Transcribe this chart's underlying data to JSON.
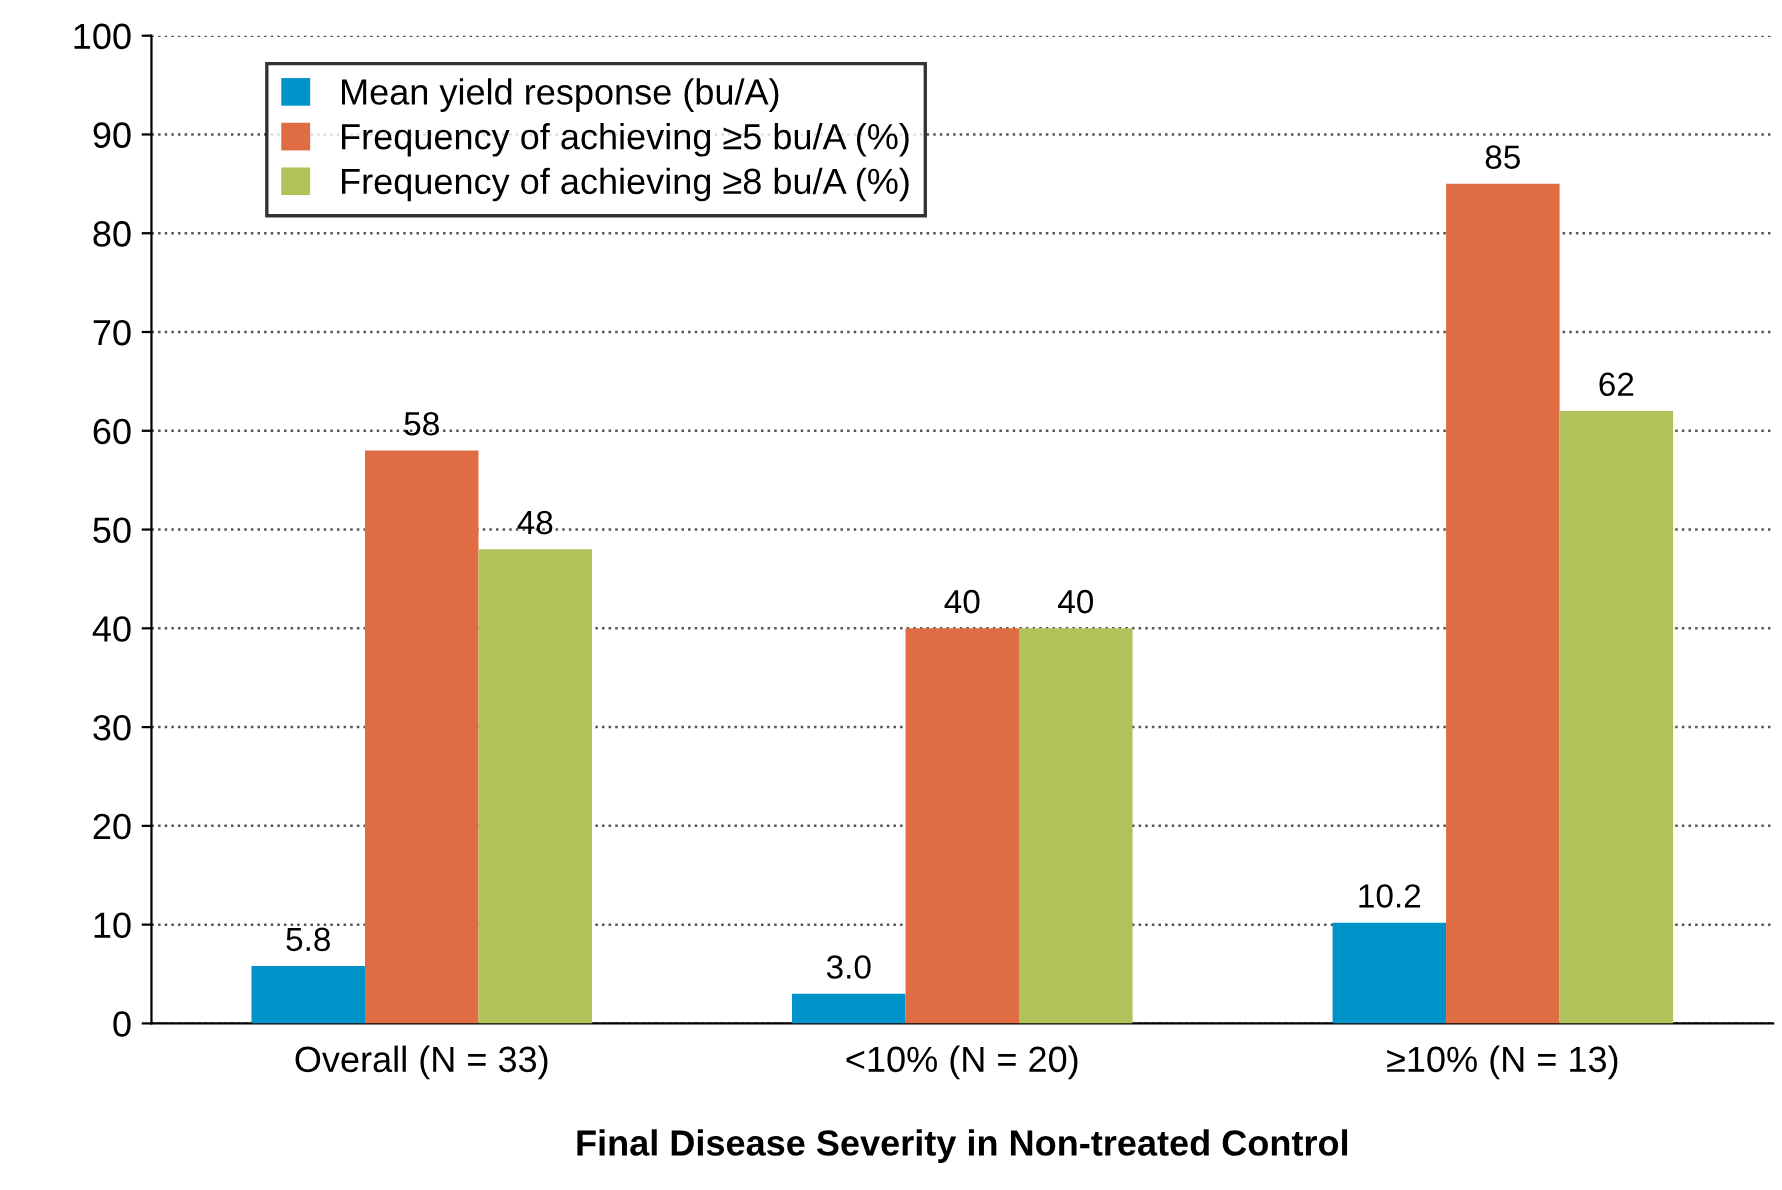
{
  "chart_data": {
    "type": "bar",
    "xlabel": "Final Disease Severity in Non-treated Control",
    "categories": [
      "Overall (N = 33)",
      "<10% (N = 20)",
      "≥10% (N = 13)"
    ],
    "series": [
      {
        "name": "Mean yield response (bu/A)",
        "color": "#0093c9",
        "values": [
          5.8,
          3.0,
          10.2
        ],
        "value_labels": [
          "5.8",
          "3.0",
          "10.2"
        ]
      },
      {
        "name": "Frequency of achieving ≥5 bu/A (%)",
        "color": "#e06c44",
        "values": [
          58,
          40,
          85
        ],
        "value_labels": [
          "58",
          "40",
          "85"
        ]
      },
      {
        "name": "Frequency of achieving ≥8 bu/A (%)",
        "color": "#b0c25a",
        "values": [
          48,
          40,
          62
        ],
        "value_labels": [
          "48",
          "40",
          "62"
        ]
      }
    ],
    "ylim": [
      0,
      100
    ],
    "yticks": [
      0,
      10,
      20,
      30,
      40,
      50,
      60,
      70,
      80,
      90,
      100
    ],
    "grid": "y",
    "line_style": "dotted",
    "legend": "top left"
  }
}
